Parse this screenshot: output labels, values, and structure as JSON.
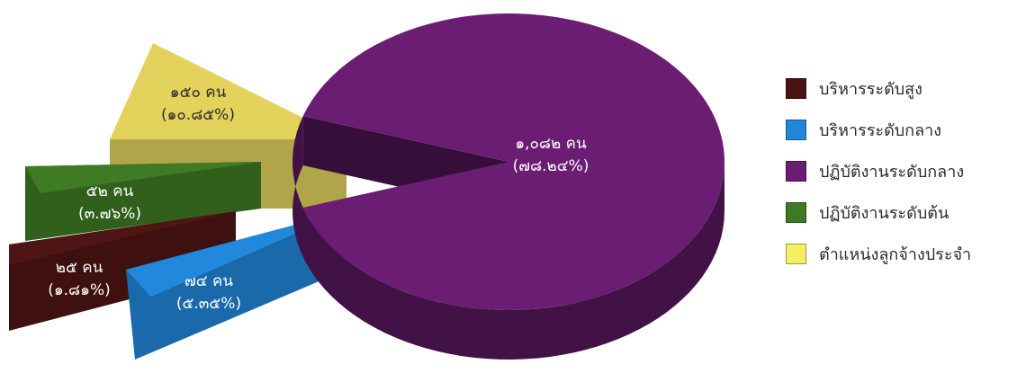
{
  "chart_data": {
    "type": "pie",
    "categories": [
      "บริหารระดับสูง",
      "บริหารระดับกลาง",
      "ปฏิบัติงานระดับกลาง",
      "ปฏิบัติงานระดับต้น",
      "ตำแหน่งลูกจ้างประจำ"
    ],
    "values": [
      25,
      74,
      1082,
      52,
      150
    ],
    "value_labels": [
      "๒๕ คน",
      "๗๔ คน",
      "๑,๐๘๒ คน",
      "๕๒ คน",
      "๑๕๐ คน"
    ],
    "percent_labels": [
      "(๑.๘๑%)",
      "(๕.๓๕%)",
      "(๗๘.๒๔%)",
      "(๓.๗๖%)",
      "(๑๐.๘๕%)"
    ],
    "colors": [
      "#4a1212",
      "#1f86d8",
      "#6a1d72",
      "#3e7a25",
      "#ddcf5c"
    ],
    "title": "",
    "legend_position": "right",
    "style": "3d-exploded"
  },
  "legend": {
    "items": [
      {
        "label": "บริหารระดับสูง",
        "color": "#4a1212"
      },
      {
        "label": "บริหารระดับกลาง",
        "color": "#1f86d8"
      },
      {
        "label": "ปฏิบัติงานระดับกลาง",
        "color": "#6a1d72"
      },
      {
        "label": "ปฏิบัติงานระดับต้น",
        "color": "#3e7a25"
      },
      {
        "label": "ตำแหน่งลูกจ้างประจำ",
        "color": "#f5ee62"
      }
    ]
  }
}
